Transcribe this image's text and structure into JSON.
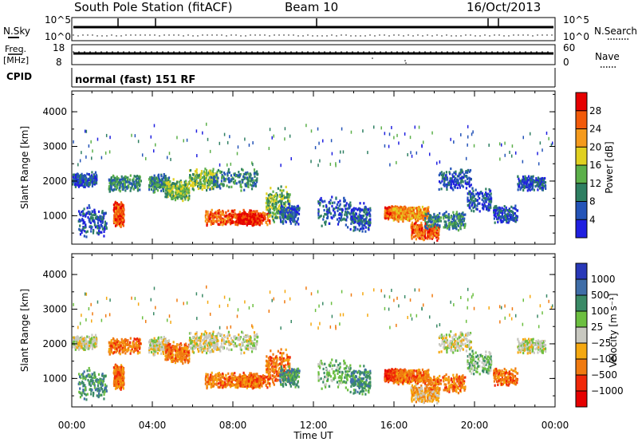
{
  "header": {
    "station": "South Pole Station (fitACF)",
    "beam": "Beam 10",
    "date": "16/Oct/2013"
  },
  "status_panels": {
    "nsky_label": "N.Sky",
    "nsky_ticks": [
      "10^5",
      "10^0"
    ],
    "nsearch_label": "N.Search",
    "nsearch_ticks": [
      "10^5",
      "10^0"
    ],
    "freq_label": "Freq.",
    "freq_unit": "[MHz]",
    "freq_ticks": [
      "18",
      "8"
    ],
    "nave_label": "Nave",
    "nave_ticks": [
      "60",
      "0"
    ],
    "cpid_label": "CPID",
    "cpid_text": "normal (fast) 151 RF"
  },
  "chart_data": {
    "type": "heatmap",
    "x_ticks": [
      "00:00",
      "04:00",
      "08:00",
      "12:00",
      "16:00",
      "20:00",
      "00:00"
    ],
    "xlabel": "Time UT",
    "x_range_hours": [
      0,
      24
    ],
    "panels": [
      {
        "name": "power",
        "ylabel": "Slant Range [km]",
        "y_ticks": [
          "1000",
          "2000",
          "3000",
          "4000"
        ],
        "ylim": [
          180,
          4600
        ],
        "colorbar_label": "Power [dB]",
        "colorbar_ticks": [
          "4",
          "8",
          "12",
          "16",
          "20",
          "24",
          "28"
        ],
        "colors": [
          "#1f1fe0",
          "#2454b8",
          "#2e7f62",
          "#5cb04a",
          "#e0d020",
          "#f59a1c",
          "#f25a0a",
          "#e60000"
        ],
        "grid": false
      },
      {
        "name": "velocity",
        "ylabel": "Slant Range [km]",
        "y_ticks": [
          "1000",
          "2000",
          "3000",
          "4000"
        ],
        "ylim": [
          180,
          4600
        ],
        "colorbar_label": "Velocity [m s⁻¹]",
        "colorbar_ticks": [
          "1000",
          "500",
          "100",
          "25",
          "−25",
          "−100",
          "−500",
          "−1000"
        ],
        "colors": [
          "#2838b8",
          "#3f6ea8",
          "#3a8a66",
          "#6cbf40",
          "#c8c8c0",
          "#f5a810",
          "#f07a10",
          "#f02808",
          "#e60000"
        ],
        "grid": false
      }
    ]
  }
}
